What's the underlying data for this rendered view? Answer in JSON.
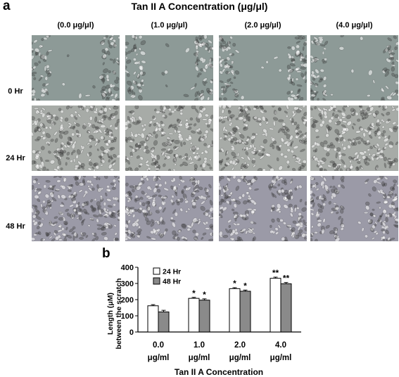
{
  "panel_a": {
    "letter": "a",
    "title": "Tan II A Concentration (μg/μl)",
    "columns": [
      "(0.0 μg/μl)",
      "(1.0 μg/μl)",
      "(2.0 μg/μl)",
      "(4.0 μg/μl)"
    ],
    "rows": [
      "0 Hr",
      "24 Hr",
      "48 Hr"
    ],
    "tone_colors": [
      "#8d9a97",
      "#a7aba7",
      "#9b9aa7"
    ],
    "gap_fraction": [
      [
        0.58,
        0.58,
        0.58,
        0.64
      ],
      [
        0.0,
        0.0,
        0.0,
        0.0
      ],
      [
        0.0,
        0.06,
        0.16,
        0.26
      ]
    ]
  },
  "panel_b": {
    "letter": "b",
    "chart_data": {
      "type": "bar",
      "title": "",
      "xlabel": "Tan II A Concentration",
      "ylabel": [
        "Length (μM)",
        "between the scratch"
      ],
      "categories": [
        [
          "0.0",
          "μg/ml"
        ],
        [
          "1.0",
          "μg/ml"
        ],
        [
          "2.0",
          "μg/ml"
        ],
        [
          "4.0",
          "μg/ml"
        ]
      ],
      "ylim": [
        0,
        400
      ],
      "yticks": [
        0,
        100,
        200,
        300,
        400
      ],
      "legend_position": "top-left",
      "series": [
        {
          "name": "24 Hr",
          "values": [
            162,
            208,
            268,
            332
          ],
          "errors": [
            7,
            6,
            6,
            7
          ],
          "significance": [
            "",
            "*",
            "*",
            "**"
          ],
          "color": "#ffffff"
        },
        {
          "name": "48 Hr",
          "values": [
            124,
            197,
            252,
            298
          ],
          "errors": [
            10,
            8,
            7,
            8
          ],
          "significance": [
            "",
            "*",
            "*",
            "**"
          ],
          "color": "#8a8a8a"
        }
      ]
    }
  }
}
